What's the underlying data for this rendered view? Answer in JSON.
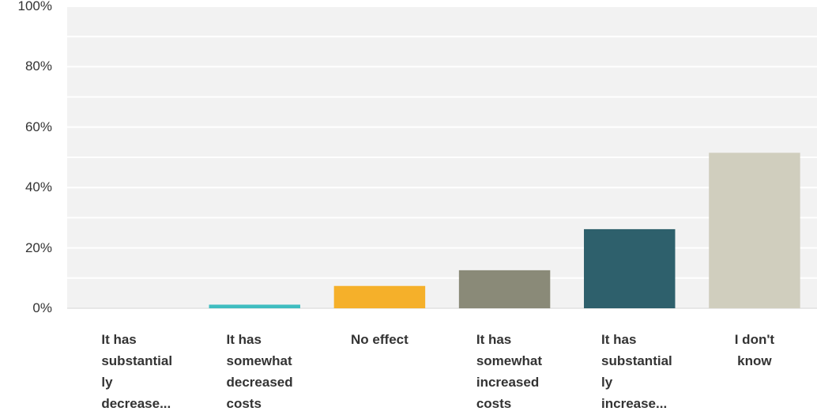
{
  "chart_data": {
    "type": "bar",
    "categories": [
      "It has\nsubstantial\nly\ndecrease...",
      "It has\nsomewhat\ndecreased\ncosts",
      "No effect",
      "It has\nsomewhat\nincreased\ncosts",
      "It has\nsubstantial\nly\nincrease...",
      "I don't\nknow"
    ],
    "values": [
      0,
      1.2,
      7.4,
      12.6,
      26.2,
      51.5
    ],
    "value_unit": "%",
    "colors": [
      "#5bc0c4",
      "#3fbdc0",
      "#f5b02a",
      "#8a8a78",
      "#2e606c",
      "#d0cebe"
    ],
    "ylim": [
      0,
      100
    ],
    "yticks": [
      "0%",
      "20%",
      "40%",
      "60%",
      "80%",
      "100%"
    ],
    "grid": true,
    "legend": "none",
    "title": "",
    "xlabel": "",
    "ylabel": ""
  }
}
